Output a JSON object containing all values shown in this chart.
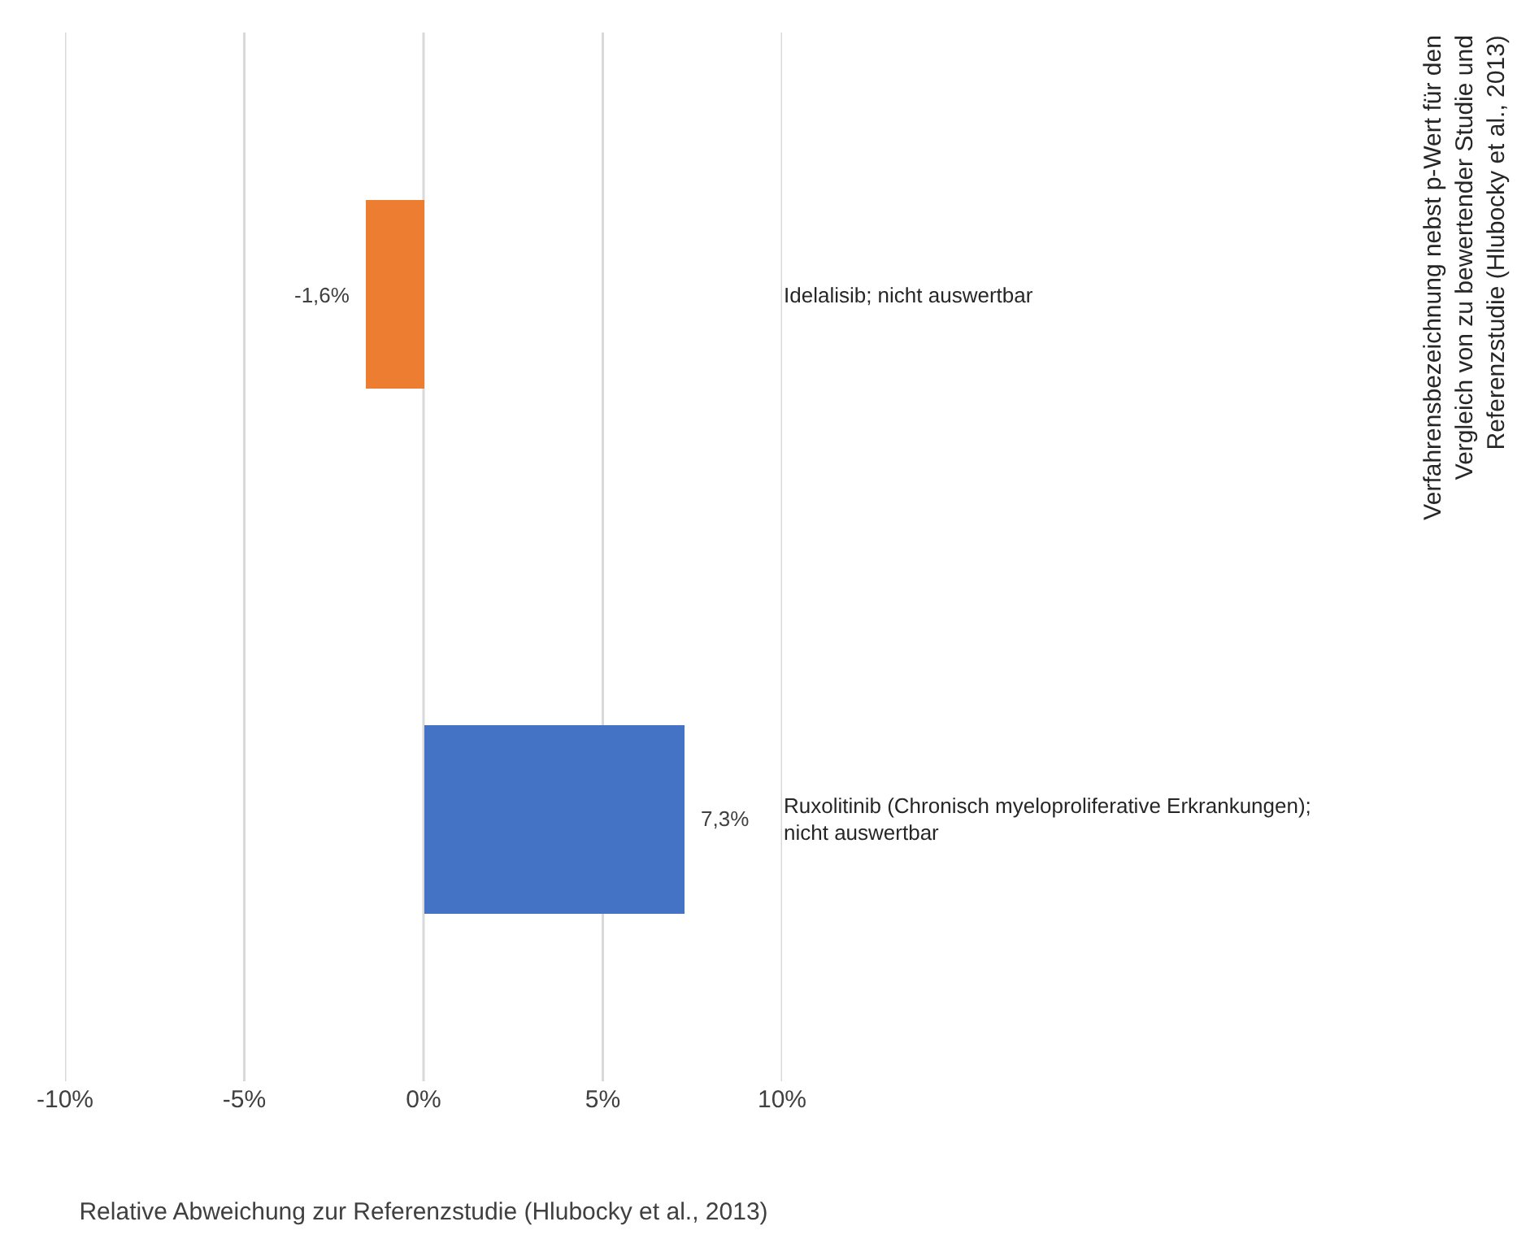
{
  "chart_data": {
    "type": "bar",
    "orientation": "horizontal",
    "categories": [
      "Idelalisib; nicht auswertbar",
      "Ruxolitinib (Chronisch myeloproliferative Erkrankungen); nicht auswertbar"
    ],
    "values": [
      -1.6,
      7.3
    ],
    "colors": [
      "#ed7d31",
      "#4472c4"
    ],
    "value_labels": [
      "-1,6%",
      "7,3%"
    ],
    "xlim": [
      -10,
      10
    ],
    "xticks": [
      {
        "value": -10,
        "label": "-10%"
      },
      {
        "value": -5,
        "label": "-5%"
      },
      {
        "value": 0,
        "label": "0%"
      },
      {
        "value": 5,
        "label": "5%"
      },
      {
        "value": 10,
        "label": "10%"
      }
    ],
    "xlabel": "Relative Abweichung zur Referenzstudie (Hlubocky et al., 2013)",
    "ylabel": "Verfahrensbezeichnung nebst p-Wert für den Vergleich von zu bewertender Studie und Referenzstudie (Hlubocky et al., 2013)",
    "grid": "x"
  }
}
